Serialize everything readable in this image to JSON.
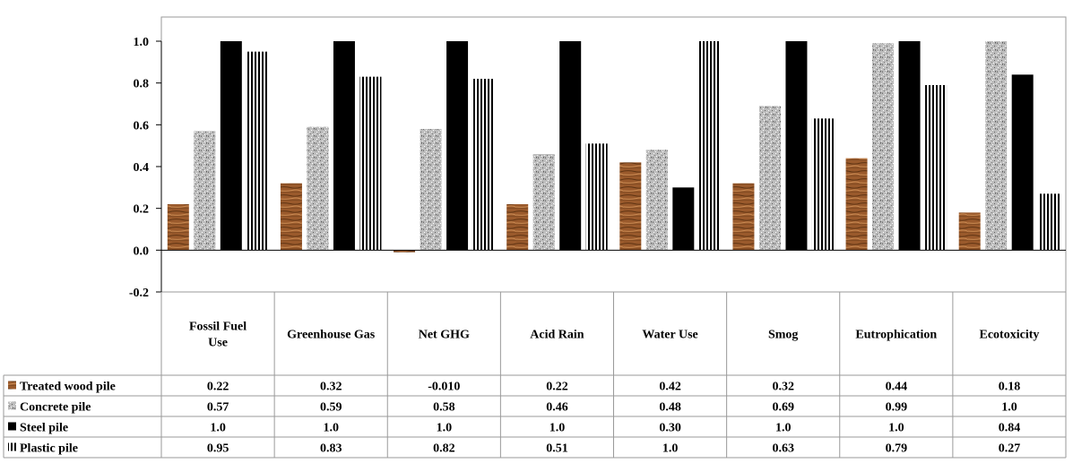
{
  "chart_data": {
    "type": "bar",
    "categories": [
      "Fossil Fuel Use",
      "Greenhouse Gas",
      "Net GHG",
      "Acid Rain",
      "Water Use",
      "Smog",
      "Eutrophication",
      "Ecotoxicity"
    ],
    "yticks": [
      "1.0",
      "0.8",
      "0.6",
      "0.4",
      "0.2",
      "0.0",
      "-0.2"
    ],
    "ylim": [
      -0.2,
      1.0
    ],
    "grid": false,
    "legend_placement": "data-table-left",
    "series": [
      {
        "name": "Treated wood pile",
        "pattern": "wood-grain",
        "color": "#9a5a2c",
        "values": [
          0.22,
          0.32,
          -0.01,
          0.22,
          0.42,
          0.32,
          0.44,
          0.18
        ],
        "labels": [
          "0.22",
          "0.32",
          "-0.010",
          "0.22",
          "0.42",
          "0.32",
          "0.44",
          "0.18"
        ]
      },
      {
        "name": "Concrete pile",
        "pattern": "granite-speckle",
        "color": "#b4b4b4",
        "values": [
          0.57,
          0.59,
          0.58,
          0.46,
          0.48,
          0.69,
          0.99,
          1.0
        ],
        "labels": [
          "0.57",
          "0.59",
          "0.58",
          "0.46",
          "0.48",
          "0.69",
          "0.99",
          "1.0"
        ]
      },
      {
        "name": "Steel pile",
        "pattern": "solid",
        "color": "#000000",
        "values": [
          1.0,
          1.0,
          1.0,
          1.0,
          0.3,
          1.0,
          1.0,
          0.84
        ],
        "labels": [
          "1.0",
          "1.0",
          "1.0",
          "1.0",
          "0.30",
          "1.0",
          "1.0",
          "0.84"
        ]
      },
      {
        "name": "Plastic pile",
        "pattern": "vertical-stripes",
        "color": "#000000",
        "values": [
          0.95,
          0.83,
          0.82,
          0.51,
          1.0,
          0.63,
          0.79,
          0.27
        ],
        "labels": [
          "0.95",
          "0.83",
          "0.82",
          "0.51",
          "1.0",
          "0.63",
          "0.79",
          "0.27"
        ]
      }
    ]
  }
}
